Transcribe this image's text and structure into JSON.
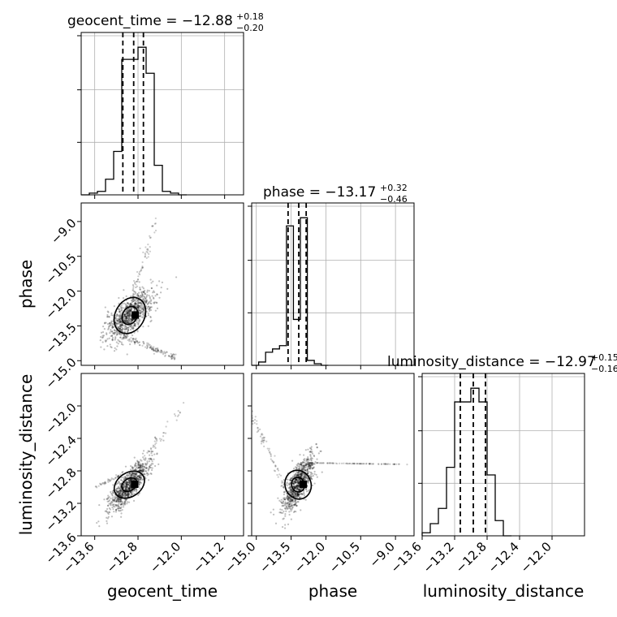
{
  "chart_data": {
    "type": "corner",
    "parameters": [
      {
        "name": "geocent_time",
        "title": "geocent_time = −12.88",
        "title_plus": "+0.18",
        "title_minus": "−0.20",
        "range": [
          -13.85,
          -10.85
        ],
        "ticks": [
          -13.6,
          -12.8,
          -12.0,
          -11.2
        ],
        "tick_labels": [
          "−13.6",
          "−12.8",
          "−12.0",
          "−11.2"
        ],
        "quantiles": [
          -13.08,
          -12.88,
          -12.7
        ],
        "hist_bins": [
          -13.85,
          -13.7,
          -13.55,
          -13.4,
          -13.25,
          -13.1,
          -12.95,
          -12.8,
          -12.65,
          -12.5,
          -12.35,
          -12.2,
          -12.05,
          -11.9
        ],
        "hist_counts": [
          0,
          1,
          2,
          9,
          25,
          78,
          78,
          85,
          70,
          17,
          2,
          1,
          0
        ]
      },
      {
        "name": "phase",
        "title": "phase = −13.17",
        "title_plus": "+0.32",
        "title_minus": "−0.46",
        "range": [
          -15.2,
          -8.2
        ],
        "ticks": [
          -15.0,
          -13.5,
          -12.0,
          -10.5,
          -9.0
        ],
        "tick_labels": [
          "−15.0",
          "−13.5",
          "−12.0",
          "−10.5",
          "−9.0"
        ],
        "quantiles": [
          -13.63,
          -13.17,
          -12.85
        ],
        "hist_bins": [
          -15.2,
          -14.9,
          -14.6,
          -14.3,
          -14.0,
          -13.7,
          -13.4,
          -13.1,
          -12.8,
          -12.5,
          -12.2,
          -11.9
        ],
        "hist_counts": [
          0,
          2,
          8,
          10,
          12,
          85,
          28,
          90,
          3,
          1,
          0
        ]
      },
      {
        "name": "luminosity_distance",
        "title": "luminosity_distance = −12.97",
        "title_plus": "+0.15",
        "title_minus": "−0.16",
        "range": [
          -13.6,
          -11.6
        ],
        "ticks": [
          -13.6,
          -13.2,
          -12.8,
          -12.4,
          -12.0
        ],
        "tick_labels": [
          "−13.6",
          "−13.2",
          "−12.8",
          "−12.4",
          "−12.0"
        ],
        "y_ticks": [
          -13.6,
          -13.2,
          -12.8,
          -12.4,
          -12.0
        ],
        "quantiles": [
          -13.13,
          -12.97,
          -12.82
        ],
        "hist_bins": [
          -13.6,
          -13.5,
          -13.4,
          -13.3,
          -13.2,
          -13.1,
          -13.0,
          -12.9,
          -12.8,
          -12.7,
          -12.6,
          -12.5
        ],
        "hist_counts": [
          2,
          8,
          18,
          45,
          88,
          88,
          97,
          88,
          40,
          10,
          0
        ]
      }
    ],
    "pairs": [
      {
        "x": "geocent_time",
        "y": "phase",
        "core": {
          "cx": -12.95,
          "cy": -13.05,
          "sx": 0.22,
          "sy": 0.55,
          "rho": 0.7
        },
        "tail": {
          "x0": -13.1,
          "y0": -13.9,
          "x1": -12.1,
          "y1": -14.9,
          "n": 130
        },
        "spread": {
          "x0": -12.9,
          "y0": -12.2,
          "x1": -12.45,
          "y1": -8.9,
          "n": 60
        }
      },
      {
        "x": "geocent_time",
        "y": "luminosity_distance",
        "core": {
          "cx": -12.96,
          "cy": -12.97,
          "sx": 0.19,
          "sy": 0.16,
          "rho": 0.82
        },
        "tail": {
          "x0": -12.8,
          "y0": -12.75,
          "x1": -12.0,
          "y1": -12.05,
          "n": 40
        },
        "spread": {
          "x0": -13.6,
          "y0": -13.0,
          "x1": -13.1,
          "y1": -12.85,
          "n": 40
        }
      },
      {
        "x": "phase",
        "y": "luminosity_distance",
        "core": {
          "cx": -13.2,
          "cy": -12.97,
          "sx": 0.35,
          "sy": 0.17,
          "rho": 0.75
        },
        "tail": {
          "x0": -12.9,
          "y0": -12.7,
          "x1": -8.7,
          "y1": -12.72,
          "n": 90
        },
        "spread": {
          "x0": -15.2,
          "y0": -12.1,
          "x1": -13.8,
          "y1": -13.0,
          "n": 70
        }
      }
    ]
  }
}
